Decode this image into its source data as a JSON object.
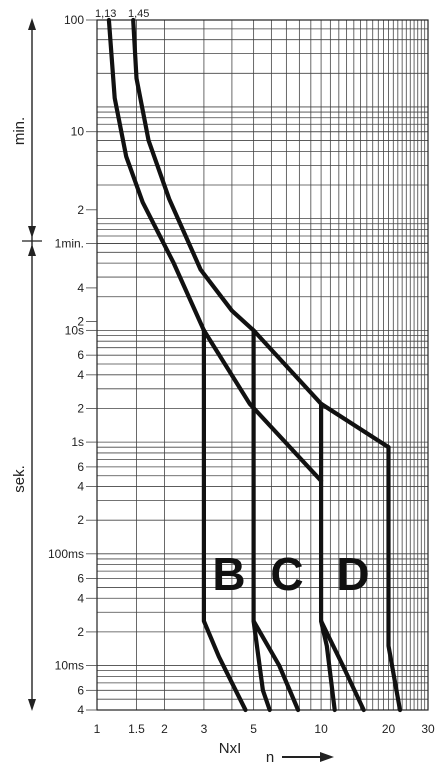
{
  "chart_data": {
    "type": "line",
    "title": "",
    "xlabel": "NxI",
    "xlabel_secondary": "n",
    "ylabel_upper": "min.",
    "ylabel_lower": "sek.",
    "x_scale": "log",
    "y_scale": "log",
    "xlim": [
      1,
      30
    ],
    "x_ticks": [
      {
        "value": 1,
        "label": "1"
      },
      {
        "value": 1.5,
        "label": "1.5"
      },
      {
        "value": 2,
        "label": "2"
      },
      {
        "value": 3,
        "label": "3"
      },
      {
        "value": 5,
        "label": "5"
      },
      {
        "value": 10,
        "label": "10"
      },
      {
        "value": 20,
        "label": "20"
      },
      {
        "value": 30,
        "label": "30"
      }
    ],
    "y_ticks": [
      {
        "label": "100"
      },
      {
        "label": "10"
      },
      {
        "label": "2"
      },
      {
        "label": "1min."
      },
      {
        "label": "4"
      },
      {
        "label": "2"
      },
      {
        "label": "10s"
      },
      {
        "label": "6"
      },
      {
        "label": "4"
      },
      {
        "label": "2"
      },
      {
        "label": "1s"
      },
      {
        "label": "6"
      },
      {
        "label": "4"
      },
      {
        "label": "2"
      },
      {
        "label": "100ms"
      },
      {
        "label": "6"
      },
      {
        "label": "4"
      },
      {
        "label": "2"
      },
      {
        "label": "10ms"
      },
      {
        "label": "6"
      },
      {
        "label": "4"
      }
    ],
    "top_labels": [
      "1,13",
      "1,45"
    ],
    "curve_labels": [
      "B",
      "C",
      "D"
    ],
    "grid": true,
    "series": [
      {
        "name": "",
        "points": [
          [
            1.13,
            6000
          ],
          [
            1.2,
            1200
          ],
          [
            1.35,
            360
          ],
          [
            1.6,
            140
          ],
          [
            2.2,
            40
          ],
          [
            3,
            10
          ],
          [
            4.8,
            2.2
          ],
          [
            10,
            0.45
          ]
        ]
      },
      {
        "name": "",
        "points": [
          [
            1.45,
            6000
          ],
          [
            1.5,
            1800
          ],
          [
            1.7,
            500
          ],
          [
            2.1,
            150
          ],
          [
            2.9,
            35
          ],
          [
            4,
            15
          ],
          [
            5,
            10
          ],
          [
            10,
            2.2
          ],
          [
            20,
            0.9
          ]
        ]
      },
      {
        "name": "B",
        "points": [
          [
            3,
            10
          ],
          [
            3,
            0.025
          ],
          [
            3.5,
            0.012
          ],
          [
            4.6,
            0.004
          ]
        ]
      },
      {
        "name": "C",
        "points": [
          [
            5,
            10
          ],
          [
            5,
            0.025
          ],
          [
            5.5,
            0.006
          ],
          [
            5.9,
            0.004
          ]
        ]
      },
      {
        "name": "",
        "points": [
          [
            5,
            0.025
          ],
          [
            6.5,
            0.01
          ],
          [
            7.9,
            0.004
          ]
        ]
      },
      {
        "name": "D",
        "points": [
          [
            10,
            2.2
          ],
          [
            10,
            0.025
          ],
          [
            10.6,
            0.015
          ],
          [
            11.5,
            0.004
          ]
        ]
      },
      {
        "name": "",
        "points": [
          [
            10,
            0.025
          ],
          [
            12.5,
            0.01
          ],
          [
            15.5,
            0.004
          ]
        ]
      },
      {
        "name": "",
        "points": [
          [
            20,
            0.9
          ],
          [
            20,
            0.015
          ],
          [
            22.5,
            0.004
          ]
        ]
      }
    ]
  }
}
